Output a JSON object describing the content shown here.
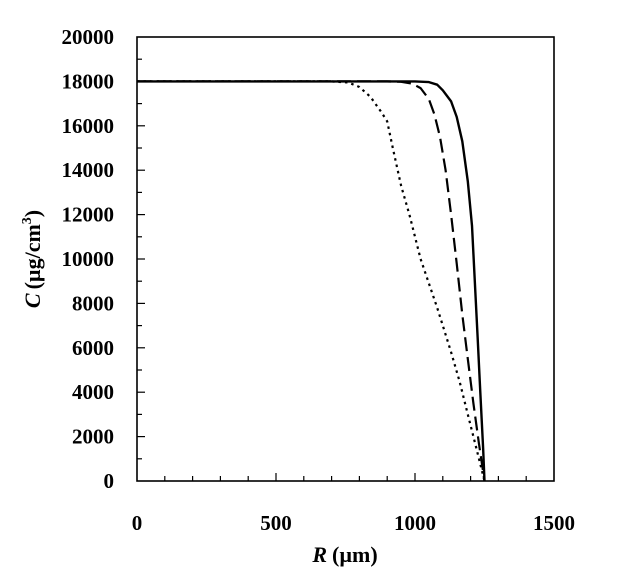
{
  "chart_data": {
    "type": "line",
    "title": "",
    "xlabel": {
      "var": "R",
      "unit": "(µm)"
    },
    "ylabel": {
      "var": "C",
      "unit": "(µg/cm",
      "sup": "3",
      "close": ")"
    },
    "xlim": [
      0,
      1500
    ],
    "ylim": [
      0,
      20000
    ],
    "x_ticks": [
      0,
      500,
      1000,
      1500
    ],
    "y_ticks": [
      0,
      2000,
      4000,
      6000,
      8000,
      10000,
      12000,
      14000,
      16000,
      18000,
      20000
    ],
    "grid": false,
    "legend": "none",
    "series": [
      {
        "style": "dotted",
        "points": [
          [
            0,
            18000
          ],
          [
            700,
            18000
          ],
          [
            760,
            17950
          ],
          [
            800,
            17750
          ],
          [
            840,
            17300
          ],
          [
            880,
            16600
          ],
          [
            900,
            16200
          ],
          [
            920,
            15000
          ],
          [
            950,
            13300
          ],
          [
            980,
            12000
          ],
          [
            1000,
            11000
          ],
          [
            1020,
            10000
          ],
          [
            1050,
            8900
          ],
          [
            1080,
            7800
          ],
          [
            1100,
            7000
          ],
          [
            1130,
            5800
          ],
          [
            1160,
            4500
          ],
          [
            1190,
            3000
          ],
          [
            1220,
            1500
          ],
          [
            1250,
            0
          ]
        ]
      },
      {
        "style": "dashed",
        "points": [
          [
            0,
            18000
          ],
          [
            900,
            18000
          ],
          [
            950,
            17980
          ],
          [
            990,
            17900
          ],
          [
            1020,
            17700
          ],
          [
            1050,
            17200
          ],
          [
            1070,
            16500
          ],
          [
            1090,
            15500
          ],
          [
            1110,
            14000
          ],
          [
            1130,
            12000
          ],
          [
            1150,
            9800
          ],
          [
            1170,
            7500
          ],
          [
            1190,
            5500
          ],
          [
            1210,
            3500
          ],
          [
            1230,
            1700
          ],
          [
            1250,
            0
          ]
        ]
      },
      {
        "style": "solid",
        "points": [
          [
            0,
            18000
          ],
          [
            1000,
            18000
          ],
          [
            1050,
            17970
          ],
          [
            1080,
            17850
          ],
          [
            1100,
            17600
          ],
          [
            1130,
            17100
          ],
          [
            1150,
            16400
          ],
          [
            1170,
            15300
          ],
          [
            1190,
            13500
          ],
          [
            1205,
            11500
          ],
          [
            1215,
            9000
          ],
          [
            1225,
            6500
          ],
          [
            1235,
            4000
          ],
          [
            1245,
            1500
          ],
          [
            1250,
            0
          ]
        ]
      }
    ]
  }
}
